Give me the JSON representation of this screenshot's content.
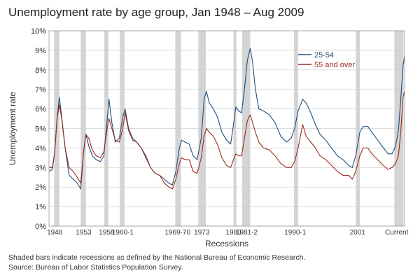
{
  "chart_data": {
    "type": "line",
    "title": "Unemployment rate by age group, Jan 1948 – Aug 2009",
    "xlabel": "Recessions",
    "ylabel": "Unemployment rate",
    "xlim": [
      1948.0,
      2009.67
    ],
    "ylim": [
      0,
      10
    ],
    "yticks": [
      "0%",
      "1%",
      "2%",
      "3%",
      "4%",
      "5%",
      "6%",
      "7%",
      "8%",
      "9%",
      "10%"
    ],
    "grid": true,
    "legend_position": "top-right",
    "recession_labels": [
      {
        "label": "1948",
        "x": 1949.0
      },
      {
        "label": "1953",
        "x": 1954.0
      },
      {
        "label": "1958",
        "x": 1958.0
      },
      {
        "label": "1960-1",
        "x": 1960.8
      },
      {
        "label": "1969-70",
        "x": 1970.3
      },
      {
        "label": "1973",
        "x": 1974.5
      },
      {
        "label": "1980",
        "x": 1980.0
      },
      {
        "label": "1981-2",
        "x": 1982.3
      },
      {
        "label": "1990-1",
        "x": 1990.7
      },
      {
        "label": "2001",
        "x": 2001.5
      },
      {
        "label": "Current",
        "x": 2008.3
      }
    ],
    "recessions": [
      [
        1948.9,
        1949.8
      ],
      [
        1953.5,
        1954.4
      ],
      [
        1957.6,
        1958.3
      ],
      [
        1960.3,
        1961.1
      ],
      [
        1969.9,
        1970.9
      ],
      [
        1973.9,
        1975.2
      ],
      [
        1980.0,
        1980.5
      ],
      [
        1981.5,
        1982.9
      ],
      [
        1990.5,
        1991.2
      ],
      [
        2001.2,
        2001.9
      ],
      [
        2007.9,
        2009.5
      ]
    ],
    "series": [
      {
        "name": "25-54",
        "color": "#1f4e79",
        "points": [
          [
            1948.0,
            2.8
          ],
          [
            1948.6,
            2.9
          ],
          [
            1949.0,
            3.8
          ],
          [
            1949.4,
            5.5
          ],
          [
            1949.8,
            6.6
          ],
          [
            1950.2,
            5.6
          ],
          [
            1950.8,
            4.0
          ],
          [
            1951.5,
            2.6
          ],
          [
            1952.2,
            2.4
          ],
          [
            1952.9,
            2.2
          ],
          [
            1953.5,
            1.9
          ],
          [
            1954.0,
            3.8
          ],
          [
            1954.4,
            4.7
          ],
          [
            1954.9,
            4.1
          ],
          [
            1955.5,
            3.6
          ],
          [
            1956.2,
            3.4
          ],
          [
            1956.9,
            3.3
          ],
          [
            1957.5,
            3.6
          ],
          [
            1958.2,
            5.8
          ],
          [
            1958.4,
            6.5
          ],
          [
            1958.9,
            5.3
          ],
          [
            1959.5,
            4.3
          ],
          [
            1960.2,
            4.5
          ],
          [
            1960.8,
            5.6
          ],
          [
            1961.2,
            6.0
          ],
          [
            1961.8,
            5.0
          ],
          [
            1962.5,
            4.5
          ],
          [
            1963.2,
            4.3
          ],
          [
            1964.0,
            4.0
          ],
          [
            1964.8,
            3.5
          ],
          [
            1965.6,
            3.0
          ],
          [
            1966.4,
            2.7
          ],
          [
            1967.2,
            2.6
          ],
          [
            1968.0,
            2.4
          ],
          [
            1968.8,
            2.2
          ],
          [
            1969.4,
            2.1
          ],
          [
            1970.0,
            2.8
          ],
          [
            1970.6,
            4.0
          ],
          [
            1971.0,
            4.4
          ],
          [
            1971.6,
            4.3
          ],
          [
            1972.3,
            4.2
          ],
          [
            1973.0,
            3.6
          ],
          [
            1973.7,
            3.4
          ],
          [
            1974.4,
            4.5
          ],
          [
            1974.9,
            6.5
          ],
          [
            1975.3,
            6.9
          ],
          [
            1975.8,
            6.3
          ],
          [
            1976.5,
            6.0
          ],
          [
            1977.2,
            5.6
          ],
          [
            1978.0,
            4.8
          ],
          [
            1978.8,
            4.4
          ],
          [
            1979.5,
            4.2
          ],
          [
            1980.0,
            5.2
          ],
          [
            1980.4,
            6.1
          ],
          [
            1980.9,
            5.9
          ],
          [
            1981.4,
            5.8
          ],
          [
            1981.9,
            7.0
          ],
          [
            1982.4,
            8.5
          ],
          [
            1982.9,
            9.1
          ],
          [
            1983.3,
            8.4
          ],
          [
            1983.8,
            7.0
          ],
          [
            1984.4,
            6.0
          ],
          [
            1985.2,
            5.9
          ],
          [
            1986.2,
            5.7
          ],
          [
            1987.2,
            5.3
          ],
          [
            1988.2,
            4.6
          ],
          [
            1989.2,
            4.3
          ],
          [
            1990.0,
            4.5
          ],
          [
            1990.6,
            5.0
          ],
          [
            1991.2,
            5.9
          ],
          [
            1992.0,
            6.5
          ],
          [
            1992.6,
            6.3
          ],
          [
            1993.4,
            5.8
          ],
          [
            1994.2,
            5.2
          ],
          [
            1995.0,
            4.7
          ],
          [
            1996.0,
            4.4
          ],
          [
            1997.0,
            4.0
          ],
          [
            1998.0,
            3.6
          ],
          [
            1999.0,
            3.4
          ],
          [
            2000.0,
            3.1
          ],
          [
            2000.6,
            3.0
          ],
          [
            2001.2,
            3.6
          ],
          [
            2001.9,
            4.8
          ],
          [
            2002.5,
            5.1
          ],
          [
            2003.3,
            5.1
          ],
          [
            2004.0,
            4.8
          ],
          [
            2005.0,
            4.4
          ],
          [
            2006.0,
            4.0
          ],
          [
            2006.8,
            3.7
          ],
          [
            2007.5,
            3.7
          ],
          [
            2008.1,
            4.1
          ],
          [
            2008.6,
            4.9
          ],
          [
            2009.0,
            6.5
          ],
          [
            2009.4,
            8.2
          ],
          [
            2009.67,
            8.7
          ]
        ]
      },
      {
        "name": "55 and over",
        "color": "#9b2b1e",
        "points": [
          [
            1948.0,
            3.0
          ],
          [
            1948.6,
            3.0
          ],
          [
            1949.0,
            3.8
          ],
          [
            1949.4,
            5.5
          ],
          [
            1949.8,
            6.2
          ],
          [
            1950.2,
            5.5
          ],
          [
            1950.8,
            4.0
          ],
          [
            1951.5,
            3.0
          ],
          [
            1952.2,
            2.8
          ],
          [
            1952.9,
            2.5
          ],
          [
            1953.5,
            2.2
          ],
          [
            1954.0,
            3.8
          ],
          [
            1954.4,
            4.7
          ],
          [
            1954.9,
            4.5
          ],
          [
            1955.5,
            3.9
          ],
          [
            1956.2,
            3.6
          ],
          [
            1956.9,
            3.5
          ],
          [
            1957.5,
            3.8
          ],
          [
            1958.2,
            5.2
          ],
          [
            1958.4,
            5.5
          ],
          [
            1958.9,
            5.0
          ],
          [
            1959.5,
            4.4
          ],
          [
            1960.2,
            4.3
          ],
          [
            1960.8,
            5.0
          ],
          [
            1961.2,
            5.8
          ],
          [
            1961.8,
            4.9
          ],
          [
            1962.5,
            4.4
          ],
          [
            1963.2,
            4.3
          ],
          [
            1964.0,
            4.0
          ],
          [
            1964.8,
            3.6
          ],
          [
            1965.6,
            3.0
          ],
          [
            1966.4,
            2.7
          ],
          [
            1967.2,
            2.6
          ],
          [
            1968.0,
            2.2
          ],
          [
            1968.8,
            2.0
          ],
          [
            1969.4,
            1.9
          ],
          [
            1970.0,
            2.4
          ],
          [
            1970.6,
            3.2
          ],
          [
            1971.0,
            3.5
          ],
          [
            1971.6,
            3.4
          ],
          [
            1972.3,
            3.4
          ],
          [
            1973.0,
            2.8
          ],
          [
            1973.7,
            2.7
          ],
          [
            1974.4,
            3.5
          ],
          [
            1974.9,
            4.6
          ],
          [
            1975.3,
            5.0
          ],
          [
            1975.8,
            4.8
          ],
          [
            1976.5,
            4.6
          ],
          [
            1977.2,
            4.2
          ],
          [
            1978.0,
            3.5
          ],
          [
            1978.8,
            3.1
          ],
          [
            1979.5,
            3.0
          ],
          [
            1980.0,
            3.4
          ],
          [
            1980.4,
            3.7
          ],
          [
            1980.9,
            3.6
          ],
          [
            1981.4,
            3.6
          ],
          [
            1981.9,
            4.5
          ],
          [
            1982.4,
            5.4
          ],
          [
            1982.9,
            5.7
          ],
          [
            1983.3,
            5.3
          ],
          [
            1983.8,
            4.8
          ],
          [
            1984.4,
            4.3
          ],
          [
            1985.2,
            4.0
          ],
          [
            1986.2,
            3.9
          ],
          [
            1987.2,
            3.6
          ],
          [
            1988.2,
            3.2
          ],
          [
            1989.2,
            3.0
          ],
          [
            1990.0,
            3.0
          ],
          [
            1990.6,
            3.3
          ],
          [
            1991.2,
            4.0
          ],
          [
            1992.0,
            5.2
          ],
          [
            1992.6,
            4.6
          ],
          [
            1993.4,
            4.3
          ],
          [
            1994.2,
            4.0
          ],
          [
            1995.0,
            3.6
          ],
          [
            1996.0,
            3.4
          ],
          [
            1997.0,
            3.1
          ],
          [
            1998.0,
            2.8
          ],
          [
            1999.0,
            2.6
          ],
          [
            2000.0,
            2.6
          ],
          [
            2000.6,
            2.4
          ],
          [
            2001.2,
            2.8
          ],
          [
            2001.9,
            3.6
          ],
          [
            2002.5,
            4.0
          ],
          [
            2003.3,
            4.0
          ],
          [
            2004.0,
            3.7
          ],
          [
            2005.0,
            3.4
          ],
          [
            2006.0,
            3.1
          ],
          [
            2006.8,
            2.9
          ],
          [
            2007.5,
            3.0
          ],
          [
            2008.1,
            3.2
          ],
          [
            2008.6,
            3.6
          ],
          [
            2009.0,
            4.8
          ],
          [
            2009.4,
            6.6
          ],
          [
            2009.67,
            6.9
          ]
        ]
      }
    ]
  },
  "footnote": {
    "line1": "Shaded bars indicate recessions as defined by the National Bureau of Economic Research.",
    "line2": "Source: Bureau of Labor Statistics Population Survey."
  }
}
